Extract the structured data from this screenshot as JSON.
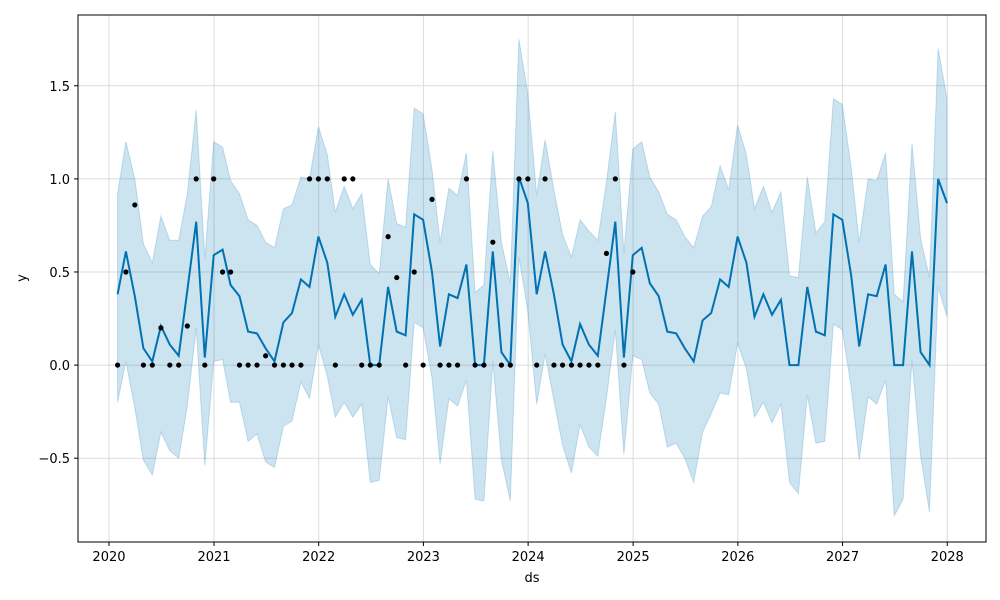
{
  "chart_data": {
    "type": "line",
    "xlabel": "ds",
    "ylabel": "y",
    "title": "",
    "x_axis_type": "date",
    "xlim": [
      "2019-09-15",
      "2028-05-15"
    ],
    "ylim": [
      -0.95,
      1.88
    ],
    "x_ticks": [
      {
        "label": "2020",
        "date": "2020-01-01"
      },
      {
        "label": "2021",
        "date": "2021-01-01"
      },
      {
        "label": "2022",
        "date": "2022-01-01"
      },
      {
        "label": "2023",
        "date": "2023-01-01"
      },
      {
        "label": "2024",
        "date": "2024-01-01"
      },
      {
        "label": "2025",
        "date": "2025-01-01"
      },
      {
        "label": "2026",
        "date": "2026-01-01"
      },
      {
        "label": "2027",
        "date": "2027-01-01"
      },
      {
        "label": "2028",
        "date": "2028-01-01"
      }
    ],
    "y_ticks": [
      {
        "label": "−0.5",
        "value": -0.5
      },
      {
        "label": "0.0",
        "value": 0.0
      },
      {
        "label": "0.5",
        "value": 0.5
      },
      {
        "label": "1.0",
        "value": 1.0
      },
      {
        "label": "1.5",
        "value": 1.5
      }
    ],
    "grid": true,
    "colors": {
      "forecast_line": "#0072B2",
      "uncertainty_band": "#0072B2",
      "observed_points": "#000000",
      "grid": "#dcdcdc"
    },
    "series": [
      {
        "kind": "forecast",
        "x": [
          "2020-01-31",
          "2020-02-29",
          "2020-03-31",
          "2020-04-30",
          "2020-05-31",
          "2020-06-30",
          "2020-07-31",
          "2020-08-31",
          "2020-09-30",
          "2020-10-31",
          "2020-11-30",
          "2020-12-31",
          "2021-01-31",
          "2021-02-28",
          "2021-03-31",
          "2021-04-30",
          "2021-05-31",
          "2021-06-30",
          "2021-07-31",
          "2021-08-31",
          "2021-09-30",
          "2021-10-31",
          "2021-11-30",
          "2021-12-31",
          "2022-01-31",
          "2022-02-28",
          "2022-03-31",
          "2022-04-30",
          "2022-05-31",
          "2022-06-30",
          "2022-07-31",
          "2022-08-31",
          "2022-09-30",
          "2022-10-31",
          "2022-11-30",
          "2022-12-31",
          "2023-01-31",
          "2023-02-28",
          "2023-03-31",
          "2023-04-30",
          "2023-05-31",
          "2023-06-30",
          "2023-07-31",
          "2023-08-31",
          "2023-09-30",
          "2023-10-31",
          "2023-11-30",
          "2023-12-31",
          "2024-01-31",
          "2024-02-29",
          "2024-03-31",
          "2024-04-30",
          "2024-05-31",
          "2024-06-30",
          "2024-07-31",
          "2024-08-31",
          "2024-09-30",
          "2024-10-31",
          "2024-11-30",
          "2024-12-31",
          "2025-01-31",
          "2025-02-28",
          "2025-03-31",
          "2025-04-30",
          "2025-05-31",
          "2025-06-30",
          "2025-07-31",
          "2025-08-31",
          "2025-09-30",
          "2025-10-31",
          "2025-11-30",
          "2025-12-31",
          "2026-01-31",
          "2026-02-28",
          "2026-03-31",
          "2026-04-30",
          "2026-05-31",
          "2026-06-30",
          "2026-07-31",
          "2026-08-31",
          "2026-09-30",
          "2026-10-31",
          "2026-11-30",
          "2026-12-31",
          "2027-01-31",
          "2027-02-28",
          "2027-03-31",
          "2027-04-30",
          "2027-05-31",
          "2027-06-30",
          "2027-07-31",
          "2027-08-31",
          "2027-09-30",
          "2027-10-31",
          "2027-11-30",
          "2027-12-31"
        ],
        "yhat": [
          0.38,
          0.61,
          0.37,
          0.09,
          0.02,
          0.21,
          0.11,
          0.05,
          0.4,
          0.77,
          0.04,
          0.59,
          0.62,
          0.43,
          0.37,
          0.18,
          0.17,
          0.09,
          0.02,
          0.23,
          0.28,
          0.46,
          0.42,
          0.69,
          0.55,
          0.26,
          0.38,
          0.27,
          0.35,
          0.0,
          0.0,
          0.42,
          0.18,
          0.16,
          0.81,
          0.78,
          0.5,
          0.1,
          0.38,
          0.36,
          0.54,
          0.0,
          0.0,
          0.61,
          0.07,
          0.0,
          1.01,
          0.87,
          0.38,
          0.61,
          0.38,
          0.11,
          0.02,
          0.22,
          0.11,
          0.05,
          0.4,
          0.77,
          0.04,
          0.59,
          0.63,
          0.44,
          0.37,
          0.18,
          0.17,
          0.09,
          0.02,
          0.24,
          0.28,
          0.46,
          0.42,
          0.69,
          0.55,
          0.26,
          0.38,
          0.27,
          0.35,
          0.0,
          0.0,
          0.42,
          0.18,
          0.16,
          0.81,
          0.78,
          0.48,
          0.1,
          0.38,
          0.37,
          0.54,
          0.0,
          0.0,
          0.61,
          0.07,
          0.0,
          1.0,
          0.87
        ],
        "yhat_upper": [
          0.92,
          1.2,
          1.0,
          0.65,
          0.55,
          0.8,
          0.67,
          0.67,
          0.92,
          1.37,
          0.57,
          1.2,
          1.17,
          0.99,
          0.92,
          0.78,
          0.75,
          0.66,
          0.63,
          0.84,
          0.86,
          1.01,
          1.0,
          1.28,
          1.13,
          0.82,
          0.96,
          0.84,
          0.92,
          0.54,
          0.49,
          1.0,
          0.76,
          0.74,
          1.38,
          1.35,
          1.05,
          0.66,
          0.95,
          0.91,
          1.14,
          0.39,
          0.43,
          1.15,
          0.66,
          0.44,
          1.75,
          1.46,
          0.91,
          1.21,
          0.94,
          0.7,
          0.58,
          0.78,
          0.72,
          0.67,
          0.98,
          1.36,
          0.6,
          1.16,
          1.2,
          1.01,
          0.93,
          0.81,
          0.78,
          0.69,
          0.63,
          0.8,
          0.85,
          1.07,
          0.94,
          1.29,
          1.13,
          0.84,
          0.96,
          0.82,
          0.93,
          0.48,
          0.47,
          1.01,
          0.71,
          0.77,
          1.43,
          1.4,
          1.06,
          0.66,
          1.0,
          0.99,
          1.14,
          0.38,
          0.34,
          1.19,
          0.68,
          0.47,
          1.7,
          1.43
        ],
        "yhat_lower": [
          -0.2,
          0.02,
          -0.23,
          -0.51,
          -0.59,
          -0.36,
          -0.46,
          -0.5,
          -0.22,
          0.2,
          -0.54,
          0.02,
          0.03,
          -0.2,
          -0.2,
          -0.41,
          -0.37,
          -0.52,
          -0.55,
          -0.33,
          -0.3,
          -0.09,
          -0.18,
          0.11,
          -0.06,
          -0.28,
          -0.2,
          -0.28,
          -0.21,
          -0.63,
          -0.62,
          -0.17,
          -0.39,
          -0.4,
          0.23,
          0.2,
          -0.07,
          -0.53,
          -0.18,
          -0.22,
          -0.08,
          -0.72,
          -0.73,
          0.02,
          -0.51,
          -0.73,
          0.58,
          0.29,
          -0.21,
          0.06,
          -0.19,
          -0.43,
          -0.58,
          -0.32,
          -0.44,
          -0.49,
          -0.18,
          0.19,
          -0.48,
          0.05,
          0.03,
          -0.15,
          -0.21,
          -0.44,
          -0.42,
          -0.5,
          -0.63,
          -0.36,
          -0.26,
          -0.15,
          -0.16,
          0.12,
          -0.02,
          -0.28,
          -0.2,
          -0.31,
          -0.21,
          -0.63,
          -0.69,
          -0.16,
          -0.42,
          -0.41,
          0.22,
          0.19,
          -0.12,
          -0.51,
          -0.17,
          -0.21,
          -0.08,
          -0.81,
          -0.72,
          0.03,
          -0.49,
          -0.79,
          0.42,
          0.26
        ]
      },
      {
        "kind": "observed",
        "x": [
          "2020-01-31",
          "2020-02-29",
          "2020-03-31",
          "2020-04-30",
          "2020-05-31",
          "2020-06-30",
          "2020-07-31",
          "2020-08-31",
          "2020-09-30",
          "2020-10-31",
          "2020-11-30",
          "2020-12-31",
          "2021-01-31",
          "2021-02-28",
          "2021-03-31",
          "2021-04-30",
          "2021-05-31",
          "2021-06-30",
          "2021-07-31",
          "2021-08-31",
          "2021-09-30",
          "2021-10-31",
          "2021-11-30",
          "2021-12-31",
          "2022-01-31",
          "2022-02-28",
          "2022-03-31",
          "2022-04-30",
          "2022-05-31",
          "2022-06-30",
          "2022-07-31",
          "2022-08-31",
          "2022-09-30",
          "2022-10-31",
          "2022-11-30",
          "2022-12-31",
          "2023-01-31",
          "2023-02-28",
          "2023-03-31",
          "2023-04-30",
          "2023-05-31",
          "2023-06-30",
          "2023-07-31",
          "2023-08-31",
          "2023-09-30",
          "2023-10-31",
          "2023-11-30",
          "2023-12-31",
          "2024-01-31",
          "2024-02-29",
          "2024-03-31",
          "2024-04-30",
          "2024-05-31",
          "2024-06-30",
          "2024-07-31",
          "2024-08-31",
          "2024-09-30",
          "2024-10-31",
          "2024-11-30",
          "2024-12-31"
        ],
        "y": [
          0.0,
          0.5,
          0.86,
          0.0,
          0.0,
          0.2,
          0.0,
          0.0,
          0.21,
          1.0,
          0.0,
          1.0,
          0.5,
          0.5,
          0.0,
          0.0,
          0.0,
          0.05,
          0.0,
          0.0,
          0.0,
          0.0,
          1.0,
          1.0,
          1.0,
          0.0,
          1.0,
          1.0,
          0.0,
          0.0,
          0.0,
          0.69,
          0.47,
          0.0,
          0.5,
          0.0,
          0.89,
          0.0,
          0.0,
          0.0,
          1.0,
          0.0,
          0.0,
          0.66,
          0.0,
          0.0,
          1.0,
          1.0,
          0.0,
          1.0,
          0.0,
          0.0,
          0.0,
          0.0,
          0.0,
          0.0,
          0.6,
          1.0,
          0.0,
          0.5
        ]
      }
    ]
  }
}
